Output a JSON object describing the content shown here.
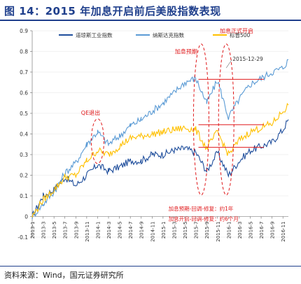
{
  "figure_title": "图 14：2015 年加息开启前后美股指数表现",
  "source_note": "资料来源：Wind，国元证券研究所",
  "colors": {
    "dow": "#1f4e9c",
    "nasdaq": "#5b9bd5",
    "sp500": "#ffc000",
    "annotation": "#e0191b",
    "title": "#1f3f8c"
  },
  "annotations": {
    "qe_exit": "QE退出",
    "hike_expect": "加息预期",
    "hike_start": "加息正式开启",
    "date_label": "2015-12-29",
    "note_line1": "加息预期-回调-修复：约1年",
    "note_line2": "加息开启-回调-修复：约6个月"
  },
  "chart_data": {
    "type": "line",
    "title": "",
    "xlabel": "",
    "ylabel": "",
    "ylim": [
      -0.1,
      0.9
    ],
    "yticks": [
      "-0.1",
      "0",
      "0.1",
      "0.2",
      "0.3",
      "0.4",
      "0.5",
      "0.6",
      "0.7",
      "0.8",
      "0.9"
    ],
    "xticks": [
      "2013-1",
      "2013-3",
      "2013-5",
      "2013-7",
      "2013-9",
      "2013-11",
      "2014-1",
      "2014-3",
      "2014-5",
      "2014-7",
      "2014-9",
      "2014-11",
      "2015-1",
      "2015-3",
      "2015-5",
      "2015-7",
      "2015-9",
      "2015-11",
      "2016-1",
      "2016-3",
      "2016-5",
      "2016-7",
      "2016-9",
      "2016-11"
    ],
    "legend": "top",
    "series": [
      {
        "name": "道琼斯工业指数",
        "color": "#1f4e9c",
        "x": [
          0,
          2,
          4,
          6,
          8,
          10,
          12,
          14,
          16,
          18,
          20,
          22,
          24,
          26,
          28,
          30,
          32,
          34,
          36,
          38,
          40,
          42,
          44,
          46,
          47
        ],
        "values": [
          0.0,
          0.1,
          0.13,
          0.19,
          0.15,
          0.2,
          0.25,
          0.22,
          0.24,
          0.27,
          0.27,
          0.3,
          0.3,
          0.32,
          0.33,
          0.31,
          0.22,
          0.31,
          0.2,
          0.27,
          0.32,
          0.34,
          0.36,
          0.42,
          0.47
        ]
      },
      {
        "name": "纳斯达克指数",
        "color": "#5b9bd5",
        "x": [
          0,
          2,
          4,
          6,
          8,
          10,
          12,
          14,
          16,
          18,
          20,
          22,
          24,
          26,
          28,
          30,
          32,
          34,
          36,
          38,
          40,
          42,
          44,
          46,
          47
        ],
        "values": [
          0.0,
          0.06,
          0.12,
          0.21,
          0.26,
          0.35,
          0.41,
          0.35,
          0.39,
          0.44,
          0.47,
          0.51,
          0.55,
          0.6,
          0.65,
          0.67,
          0.55,
          0.66,
          0.48,
          0.57,
          0.64,
          0.67,
          0.7,
          0.72,
          0.76
        ]
      },
      {
        "name": "标普500",
        "color": "#ffc000",
        "x": [
          0,
          2,
          4,
          6,
          8,
          10,
          12,
          14,
          16,
          18,
          20,
          22,
          24,
          26,
          28,
          30,
          32,
          34,
          36,
          38,
          40,
          42,
          44,
          46,
          47
        ],
        "values": [
          0.0,
          0.08,
          0.13,
          0.19,
          0.2,
          0.27,
          0.32,
          0.3,
          0.34,
          0.38,
          0.39,
          0.4,
          0.41,
          0.42,
          0.43,
          0.42,
          0.33,
          0.41,
          0.3,
          0.37,
          0.41,
          0.43,
          0.45,
          0.51,
          0.54
        ]
      }
    ]
  }
}
